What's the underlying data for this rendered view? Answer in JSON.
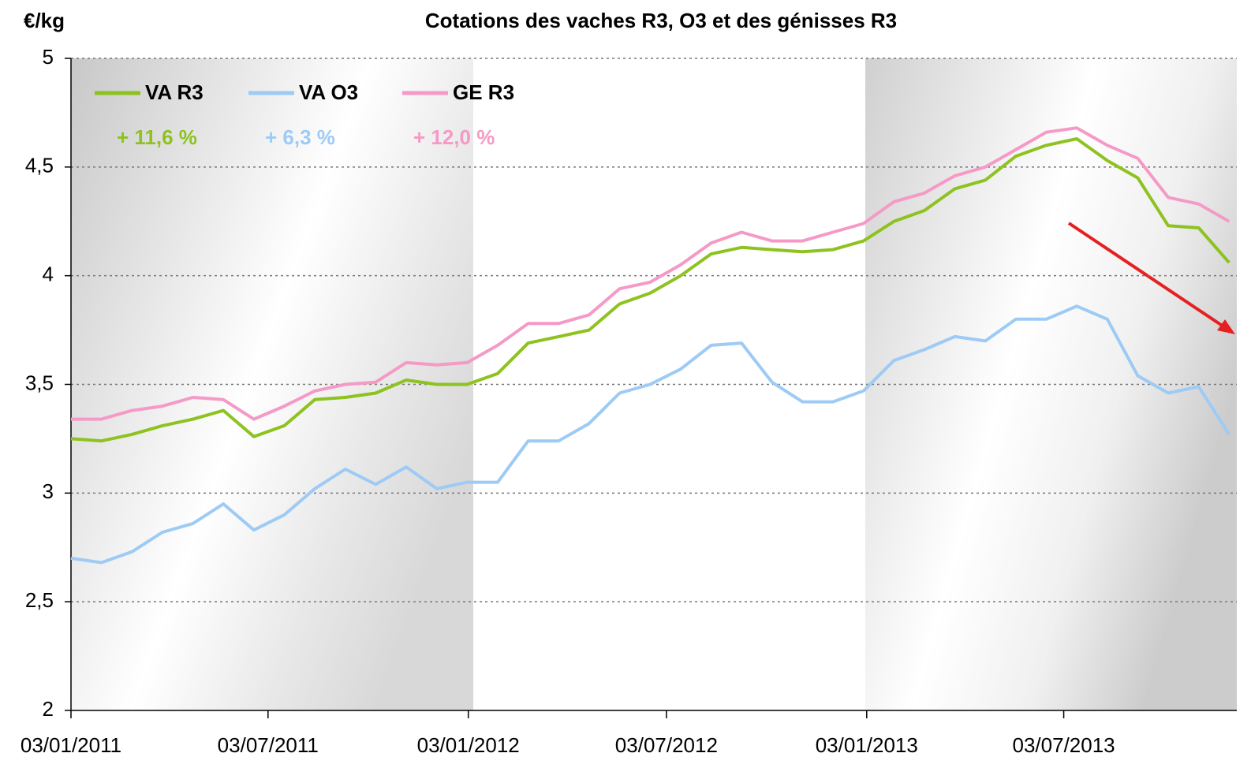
{
  "chart_data": {
    "type": "line",
    "title": "Cotations des vaches R3, O3 et des génisses R3",
    "ylabel": "€/kg",
    "x": [
      "2011-01-03",
      "2011-01-31",
      "2011-02-28",
      "2011-03-28",
      "2011-04-25",
      "2011-05-23",
      "2011-06-20",
      "2011-07-18",
      "2011-08-15",
      "2011-09-12",
      "2011-10-10",
      "2011-11-07",
      "2011-12-05",
      "2012-01-02",
      "2012-01-30",
      "2012-02-27",
      "2012-03-26",
      "2012-04-23",
      "2012-05-21",
      "2012-06-18",
      "2012-07-16",
      "2012-08-13",
      "2012-09-10",
      "2012-10-08",
      "2012-11-05",
      "2012-12-03",
      "2012-12-31",
      "2013-01-28",
      "2013-02-25",
      "2013-03-25",
      "2013-04-22",
      "2013-05-20",
      "2013-06-17",
      "2013-07-15",
      "2013-08-12",
      "2013-09-09",
      "2013-10-07",
      "2013-11-04",
      "2013-12-02"
    ],
    "series": [
      {
        "name": "VA R3",
        "color": "#8dc21f",
        "values": [
          3.25,
          3.24,
          3.27,
          3.31,
          3.34,
          3.38,
          3.26,
          3.31,
          3.43,
          3.44,
          3.46,
          3.52,
          3.5,
          3.5,
          3.55,
          3.69,
          3.72,
          3.75,
          3.87,
          3.92,
          4.0,
          4.1,
          4.13,
          4.12,
          4.11,
          4.12,
          4.16,
          4.25,
          4.3,
          4.4,
          4.44,
          4.55,
          4.6,
          4.63,
          4.53,
          4.45,
          4.23,
          4.22,
          4.06
        ]
      },
      {
        "name": "VA O3",
        "color": "#9dcbf5",
        "values": [
          2.7,
          2.68,
          2.73,
          2.82,
          2.86,
          2.95,
          2.83,
          2.9,
          3.02,
          3.11,
          3.04,
          3.12,
          3.02,
          3.05,
          3.05,
          3.24,
          3.24,
          3.32,
          3.46,
          3.5,
          3.57,
          3.68,
          3.69,
          3.51,
          3.42,
          3.42,
          3.47,
          3.61,
          3.66,
          3.72,
          3.7,
          3.8,
          3.8,
          3.86,
          3.8,
          3.54,
          3.46,
          3.49,
          3.27
        ]
      },
      {
        "name": "GE R3",
        "color": "#f59ac6",
        "values": [
          3.34,
          3.34,
          3.38,
          3.4,
          3.44,
          3.43,
          3.34,
          3.4,
          3.47,
          3.5,
          3.51,
          3.6,
          3.59,
          3.6,
          3.68,
          3.78,
          3.78,
          3.82,
          3.94,
          3.97,
          4.05,
          4.15,
          4.2,
          4.16,
          4.16,
          4.2,
          4.24,
          4.34,
          4.38,
          4.46,
          4.5,
          4.58,
          4.66,
          4.68,
          4.6,
          4.54,
          4.36,
          4.33,
          4.25
        ]
      }
    ],
    "annotations": [
      {
        "text": "+ 11,6 %",
        "color": "#8dc21f"
      },
      {
        "text": "+ 6,3 %",
        "color": "#9dcbf5"
      },
      {
        "text": "+ 12,0 %",
        "color": "#f59ac6"
      }
    ],
    "xlim": [
      "2011-01-03",
      "2013-12-09"
    ],
    "xticks": [
      {
        "value": "2011-01-03",
        "label": "03/01/2011"
      },
      {
        "value": "2011-07-03",
        "label": "03/07/2011"
      },
      {
        "value": "2012-01-03",
        "label": "03/01/2012"
      },
      {
        "value": "2012-07-03",
        "label": "03/07/2012"
      },
      {
        "value": "2013-01-03",
        "label": "03/01/2013"
      },
      {
        "value": "2013-07-03",
        "label": "03/07/2013"
      }
    ],
    "ylim": [
      2,
      5
    ],
    "yticks": [
      2,
      {
        "value": 2.5,
        "label": "2,5"
      },
      3,
      {
        "value": 3.5,
        "label": "3,5"
      },
      4,
      {
        "value": 4.5,
        "label": "4,5"
      },
      5
    ],
    "grid": true
  }
}
